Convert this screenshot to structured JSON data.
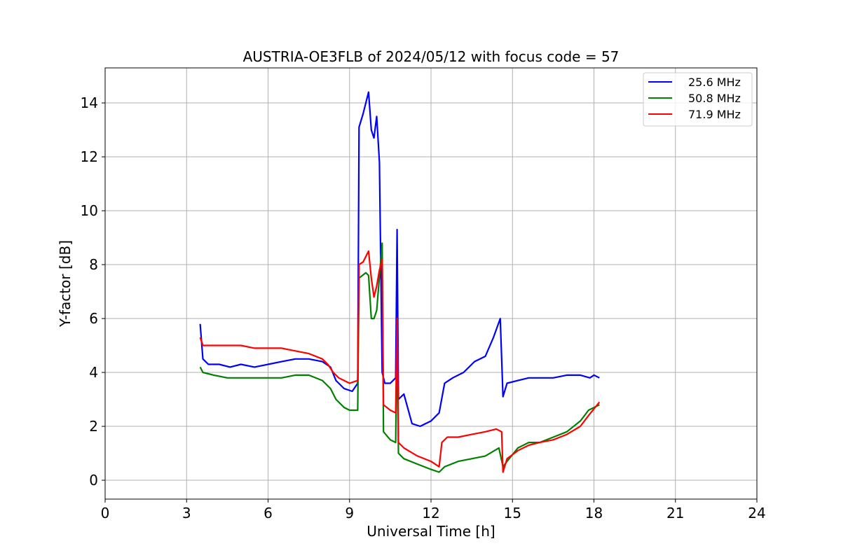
{
  "chart_data": {
    "type": "line",
    "title": "AUSTRIA-OE3FLB of 2024/05/12 with focus code = 57",
    "xlabel": "Universal Time [h]",
    "ylabel": "Y-factor [dB]",
    "xlim": [
      0,
      24
    ],
    "ylim": [
      -0.7,
      15.3
    ],
    "xticks": [
      0,
      3,
      6,
      9,
      12,
      15,
      18,
      21,
      24
    ],
    "yticks": [
      0,
      2,
      4,
      6,
      8,
      10,
      12,
      14
    ],
    "grid": true,
    "legend_position": "top-right",
    "series": [
      {
        "name": "25.6 MHz",
        "color": "#0000ff",
        "x": [
          3.5,
          3.6,
          3.8,
          4.2,
          4.6,
          5.0,
          5.5,
          6.0,
          6.5,
          7.0,
          7.5,
          8.0,
          8.3,
          8.5,
          8.8,
          9.1,
          9.3,
          9.35,
          9.5,
          9.7,
          9.8,
          9.9,
          10.0,
          10.1,
          10.2,
          10.3,
          10.5,
          10.7,
          10.75,
          10.8,
          11.0,
          11.3,
          11.6,
          12.0,
          12.3,
          12.5,
          12.8,
          13.2,
          13.6,
          14.0,
          14.3,
          14.55,
          14.65,
          14.8,
          15.2,
          15.6,
          16.0,
          16.5,
          17.0,
          17.5,
          17.85,
          18.0,
          18.2
        ],
        "y": [
          5.8,
          4.5,
          4.3,
          4.3,
          4.2,
          4.3,
          4.2,
          4.3,
          4.4,
          4.5,
          4.5,
          4.4,
          4.2,
          3.7,
          3.4,
          3.3,
          3.6,
          13.1,
          13.6,
          14.4,
          13.0,
          12.7,
          13.5,
          11.8,
          4.0,
          3.6,
          3.6,
          3.8,
          9.3,
          3.0,
          3.2,
          2.1,
          2.0,
          2.2,
          2.5,
          3.6,
          3.8,
          4.0,
          4.4,
          4.6,
          5.3,
          6.0,
          3.1,
          3.6,
          3.7,
          3.8,
          3.8,
          3.8,
          3.9,
          3.9,
          3.8,
          3.9,
          3.8
        ]
      },
      {
        "name": "50.8 MHz",
        "color": "#008000",
        "x": [
          3.5,
          3.6,
          4.0,
          4.5,
          5.0,
          5.5,
          6.0,
          6.5,
          7.0,
          7.5,
          8.0,
          8.3,
          8.5,
          8.8,
          9.0,
          9.3,
          9.35,
          9.6,
          9.7,
          9.8,
          9.9,
          10.0,
          10.2,
          10.25,
          10.5,
          10.7,
          10.75,
          10.8,
          11.0,
          11.5,
          12.0,
          12.3,
          12.5,
          13.0,
          13.5,
          14.0,
          14.5,
          14.65,
          14.8,
          15.2,
          15.6,
          16.0,
          16.5,
          17.0,
          17.5,
          17.8,
          18.2
        ],
        "y": [
          4.2,
          4.0,
          3.9,
          3.8,
          3.8,
          3.8,
          3.8,
          3.8,
          3.9,
          3.9,
          3.7,
          3.4,
          3.0,
          2.7,
          2.6,
          2.6,
          7.5,
          7.7,
          7.6,
          6.0,
          6.0,
          6.3,
          8.8,
          1.8,
          1.5,
          1.4,
          5.5,
          1.0,
          0.8,
          0.6,
          0.4,
          0.3,
          0.5,
          0.7,
          0.8,
          0.9,
          1.2,
          0.5,
          0.7,
          1.2,
          1.4,
          1.4,
          1.6,
          1.8,
          2.2,
          2.6,
          2.8
        ]
      },
      {
        "name": "71.9 MHz",
        "color": "#ff0000",
        "x": [
          3.5,
          3.6,
          4.0,
          4.5,
          5.0,
          5.5,
          6.0,
          6.5,
          7.0,
          7.5,
          8.0,
          8.2,
          8.4,
          8.6,
          8.8,
          9.0,
          9.3,
          9.35,
          9.5,
          9.7,
          9.8,
          9.9,
          10.0,
          10.1,
          10.2,
          10.25,
          10.5,
          10.7,
          10.75,
          10.8,
          11.0,
          11.5,
          12.0,
          12.3,
          12.4,
          12.6,
          13.0,
          13.5,
          14.0,
          14.4,
          14.6,
          14.65,
          14.8,
          15.2,
          15.6,
          16.0,
          16.5,
          17.0,
          17.5,
          17.8,
          18.2
        ],
        "y": [
          5.3,
          5.0,
          5.0,
          5.0,
          5.0,
          4.9,
          4.9,
          4.9,
          4.8,
          4.7,
          4.5,
          4.3,
          4.0,
          3.8,
          3.7,
          3.6,
          3.7,
          8.0,
          8.1,
          8.5,
          7.5,
          6.8,
          7.2,
          7.8,
          8.2,
          2.8,
          2.6,
          2.5,
          6.0,
          1.4,
          1.2,
          0.9,
          0.7,
          0.5,
          1.4,
          1.6,
          1.6,
          1.7,
          1.8,
          1.9,
          1.8,
          0.3,
          0.8,
          1.1,
          1.3,
          1.4,
          1.5,
          1.7,
          2.0,
          2.4,
          2.9
        ]
      }
    ]
  }
}
